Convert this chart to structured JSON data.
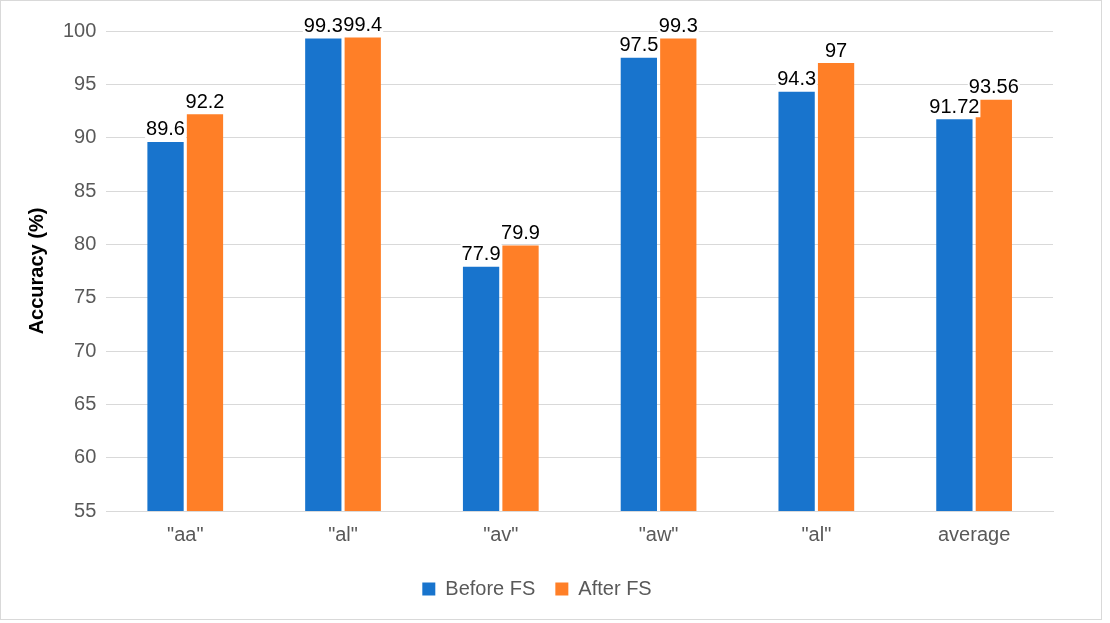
{
  "chart_data": {
    "type": "bar",
    "ylabel": "Accuracy (%)",
    "categories": [
      "\"aa\"",
      "\"al\"",
      "\"av\"",
      "\"aw\"",
      "\"al\"",
      "average"
    ],
    "series": [
      {
        "name": "Before FS",
        "color": "#1874cd",
        "values": [
          89.6,
          99.3,
          77.9,
          97.5,
          94.3,
          91.72
        ]
      },
      {
        "name": "After FS",
        "color": "#ff7f27",
        "values": [
          92.2,
          99.4,
          79.9,
          99.3,
          97,
          93.56
        ]
      }
    ],
    "ylim": [
      55,
      100
    ],
    "yticks": [
      55,
      60,
      65,
      70,
      75,
      80,
      85,
      90,
      95,
      100
    ],
    "grid": "y",
    "legend": "bottom",
    "data_labels": true
  }
}
